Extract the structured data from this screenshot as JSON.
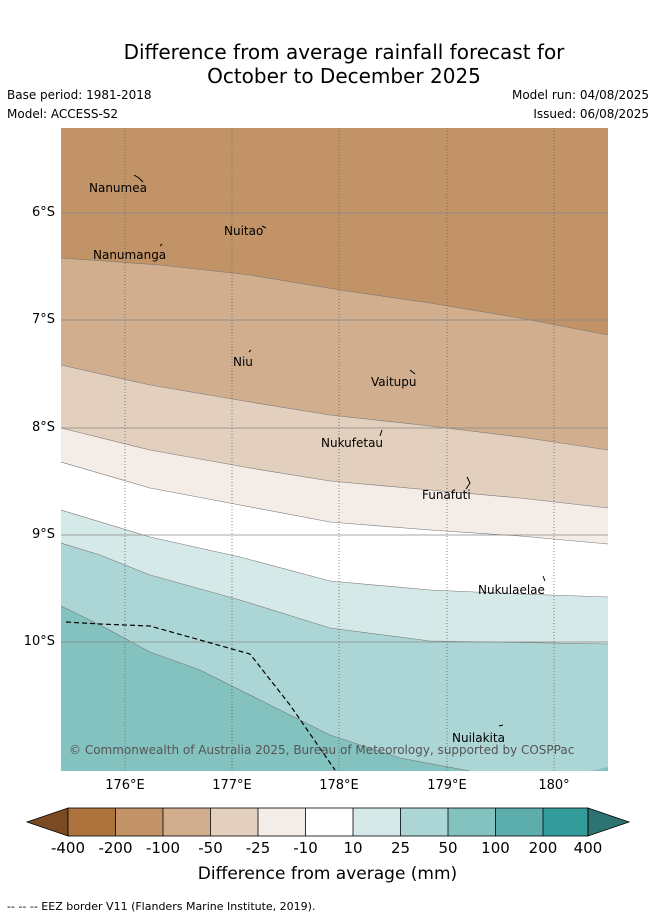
{
  "title_line1": "Difference from average rainfall forecast for",
  "title_line2": "October to December 2025",
  "base_period": "Base period: 1981-2018",
  "model": "Model: ACCESS-S2",
  "model_run": "Model run: 04/08/2025",
  "issued": "Issued: 06/08/2025",
  "lat_labels": [
    "6°S",
    "7°S",
    "8°S",
    "9°S",
    "10°S"
  ],
  "lon_labels": [
    "176°E",
    "177°E",
    "178°E",
    "179°E",
    "180°"
  ],
  "places": [
    "Nanumea",
    "Nuitao",
    "Nanumanga",
    "Niu",
    "Vaitupu",
    "Nukufetau",
    "Funafuti",
    "Nukulaelae",
    "Nuilakita"
  ],
  "copyright": "© Commonwealth of Australia 2025, Bureau of Meteorology, supported by COSPPac",
  "colorbar": {
    "ticks": [
      "-400",
      "-200",
      "-100",
      "-50",
      "-25",
      "-10",
      "10",
      "25",
      "50",
      "100",
      "200",
      "400"
    ],
    "colors": [
      "#7a4a22",
      "#ad733d",
      "#c19366",
      "#d1ae8e",
      "#e3cfbd",
      "#f4ece7",
      "#ffffff",
      "#d5e9e8",
      "#acd6d5",
      "#84c2c0",
      "#5caeac",
      "#339c9a",
      "#2d7372"
    ],
    "title": "Difference from average (mm)"
  },
  "legend_note": "-- -- -- EEZ border V11 (Flanders Marine Institute, 2019)."
}
